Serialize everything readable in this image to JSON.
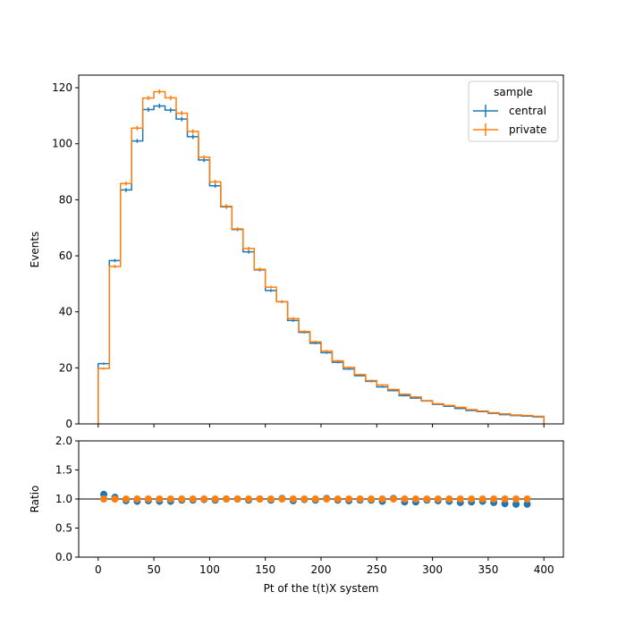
{
  "colors": {
    "central": "#1f77b4",
    "private": "#ff7f0e",
    "axis": "#000000",
    "ref_line": "#000000"
  },
  "chart_data": [
    {
      "type": "histogram",
      "panel": "main",
      "xlabel": "",
      "ylabel": "Events",
      "xlim": [
        -17.5,
        417.5
      ],
      "ylim": [
        0,
        124.5
      ],
      "bin_edges": [
        0,
        10,
        20,
        30,
        40,
        50,
        60,
        70,
        80,
        90,
        100,
        110,
        120,
        130,
        140,
        150,
        160,
        170,
        180,
        190,
        200,
        210,
        220,
        230,
        240,
        250,
        260,
        270,
        280,
        290,
        300,
        310,
        320,
        330,
        340,
        350,
        360,
        370,
        380,
        390,
        400
      ],
      "x_ticks": [
        0,
        50,
        100,
        150,
        200,
        250,
        300,
        350,
        400
      ],
      "x_ticklabels": [
        "",
        "",
        "",
        "",
        "",
        "",
        "",
        "",
        ""
      ],
      "y_ticks": [
        0,
        20,
        40,
        60,
        80,
        100,
        120
      ],
      "y_ticklabels": [
        "0",
        "20",
        "40",
        "60",
        "80",
        "100",
        "120"
      ],
      "legend": {
        "title": "sample",
        "placement": "top-right"
      },
      "series": [
        {
          "name": "central",
          "color": "#1f77b4",
          "values": [
            21.5,
            58.3,
            83.5,
            101.0,
            112.2,
            113.5,
            112.0,
            108.8,
            102.5,
            94.2,
            85.0,
            77.5,
            69.4,
            61.4,
            55.0,
            47.6,
            43.6,
            36.9,
            32.7,
            28.8,
            25.4,
            22.0,
            19.6,
            17.2,
            15.2,
            13.2,
            11.9,
            10.1,
            9.2,
            8.2,
            7.0,
            6.3,
            5.5,
            4.8,
            4.4,
            3.8,
            3.3,
            3.0,
            2.8,
            2.5
          ],
          "errors": [
            0.4,
            0.6,
            0.7,
            0.7,
            0.8,
            0.8,
            0.8,
            0.8,
            0.8,
            0.7,
            0.7,
            0.7,
            0.6,
            0.6,
            0.6,
            0.5,
            0.5,
            0.5,
            0.4,
            0.4,
            0.4,
            0.4,
            0.3,
            0.3,
            0.3,
            0.3,
            0.3,
            0.3,
            0.2,
            0.2,
            0.2,
            0.2,
            0.2,
            0.2,
            0.2,
            0.2,
            0.2,
            0.2,
            0.2,
            0.2
          ]
        },
        {
          "name": "private",
          "color": "#ff7f0e",
          "values": [
            19.8,
            56.2,
            85.8,
            105.6,
            116.3,
            118.6,
            116.4,
            110.9,
            104.4,
            95.2,
            86.4,
            77.7,
            69.6,
            62.6,
            55.2,
            48.8,
            43.6,
            37.6,
            33.0,
            29.3,
            26.0,
            22.5,
            20.2,
            17.6,
            15.5,
            13.9,
            12.3,
            10.6,
            9.6,
            8.3,
            7.2,
            6.6,
            5.9,
            5.1,
            4.6,
            4.0,
            3.6,
            3.2,
            3.0,
            2.7
          ],
          "errors": [
            0.4,
            0.6,
            0.7,
            0.8,
            0.8,
            0.8,
            0.8,
            0.8,
            0.8,
            0.7,
            0.7,
            0.7,
            0.6,
            0.6,
            0.6,
            0.5,
            0.5,
            0.5,
            0.4,
            0.4,
            0.4,
            0.4,
            0.3,
            0.3,
            0.3,
            0.3,
            0.3,
            0.3,
            0.2,
            0.2,
            0.2,
            0.2,
            0.2,
            0.2,
            0.2,
            0.2,
            0.2,
            0.2,
            0.2,
            0.2
          ]
        }
      ]
    },
    {
      "type": "scatter",
      "panel": "ratio",
      "xlabel": "Pt of the t(t)X system",
      "ylabel": "Ratio",
      "xlim": [
        -17.5,
        417.5
      ],
      "ylim": [
        0,
        2.0
      ],
      "x_ticks": [
        0,
        50,
        100,
        150,
        200,
        250,
        300,
        350,
        400
      ],
      "x_ticklabels": [
        "0",
        "50",
        "100",
        "150",
        "200",
        "250",
        "300",
        "350",
        "400"
      ],
      "y_ticks": [
        0.0,
        0.5,
        1.0,
        1.5,
        2.0
      ],
      "y_ticklabels": [
        "0.0",
        "0.5",
        "1.0",
        "1.5",
        "2.0"
      ],
      "reference_line": 1.0,
      "x": [
        5,
        15,
        25,
        35,
        45,
        55,
        65,
        75,
        85,
        95,
        105,
        115,
        125,
        135,
        145,
        155,
        165,
        175,
        185,
        195,
        205,
        215,
        225,
        235,
        245,
        255,
        265,
        275,
        285,
        295,
        305,
        315,
        325,
        335,
        345,
        355,
        365,
        375,
        385
      ],
      "series": [
        {
          "name": "central",
          "color": "#1f77b4",
          "values": [
            1.08,
            1.03,
            0.97,
            0.96,
            0.97,
            0.96,
            0.96,
            0.98,
            0.98,
            0.99,
            0.98,
            1.0,
            1.0,
            0.98,
            1.0,
            0.98,
            1.01,
            0.97,
            0.99,
            0.98,
            1.01,
            0.98,
            0.97,
            0.98,
            0.98,
            0.96,
            1.01,
            0.95,
            0.95,
            0.98,
            0.97,
            0.96,
            0.94,
            0.95,
            0.96,
            0.94,
            0.92,
            0.91,
            0.91
          ]
        },
        {
          "name": "private",
          "color": "#ff7f0e",
          "values": [
            1.0,
            1.0,
            1.0,
            1.0,
            1.0,
            1.0,
            1.0,
            1.0,
            1.0,
            1.0,
            1.0,
            1.0,
            1.0,
            1.0,
            1.0,
            1.0,
            1.0,
            1.0,
            1.0,
            1.0,
            1.0,
            1.0,
            1.0,
            1.0,
            1.0,
            1.0,
            1.0,
            1.0,
            1.0,
            1.0,
            1.0,
            1.0,
            1.0,
            1.0,
            1.0,
            1.0,
            1.0,
            1.0,
            1.0
          ]
        }
      ]
    }
  ]
}
